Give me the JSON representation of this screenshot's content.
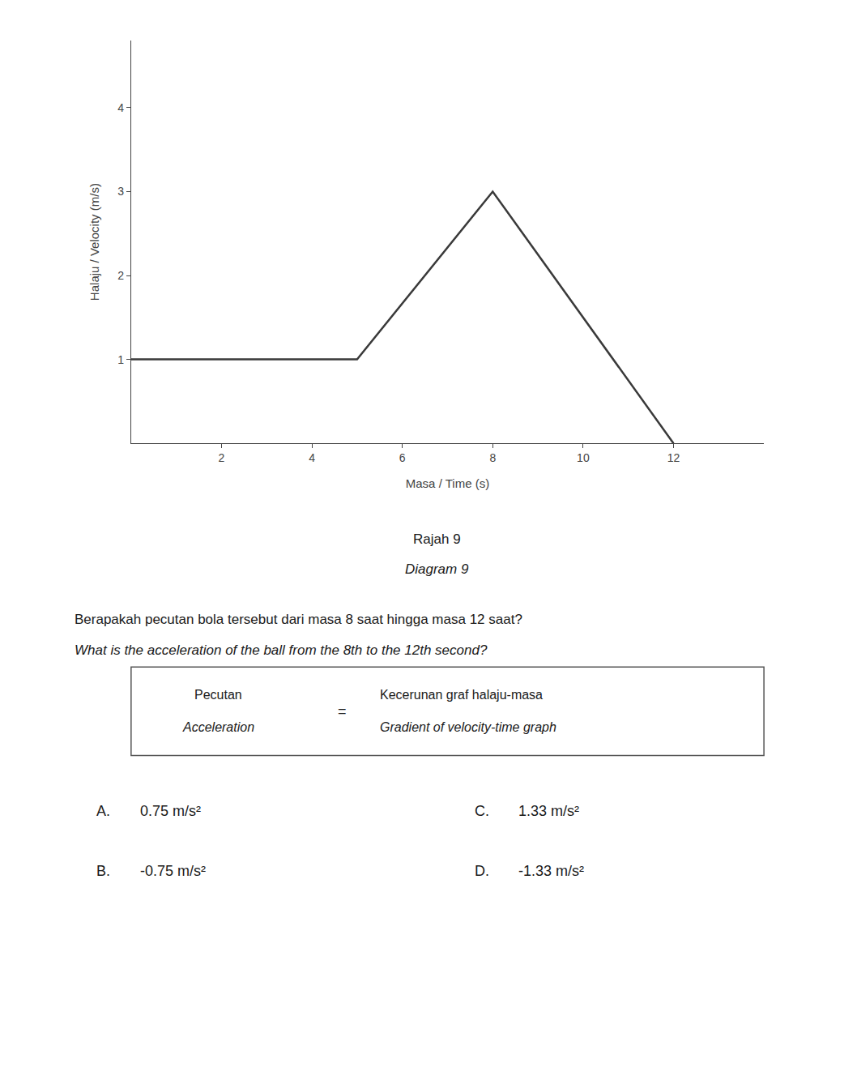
{
  "chart_data": {
    "type": "line",
    "x": [
      0,
      5,
      8,
      12
    ],
    "values": [
      1,
      1,
      3,
      0
    ],
    "color": "#3a3a3a",
    "xlim": [
      0,
      14.0
    ],
    "ylim": [
      0,
      4.8
    ],
    "xticks": [
      2,
      4,
      6,
      8,
      10,
      12
    ],
    "yticks": [
      1,
      2,
      3,
      4
    ],
    "grid": false,
    "x_label": "Masa / Time (s)",
    "y_label": "Halaju / Velocity (m/s)",
    "annotations": [
      "Rajah 9",
      "Diagram 9",
      "Berapakah pecutan bola tersebut dari masa 8 saat hingga masa 12 saat?",
      "What is the acceleration of the ball from the 8th to the 12th second?",
      "Pecutan",
      "Acceleration",
      "=",
      "Kecerunan graf halaju-masa",
      "Gradient of velocity-time graph",
      "A.",
      "0.75 m/s²",
      "C.",
      "1.33 m/s²",
      "B.",
      "-0.75 m/s²",
      "D.",
      "-1.33 m/s²"
    ]
  }
}
